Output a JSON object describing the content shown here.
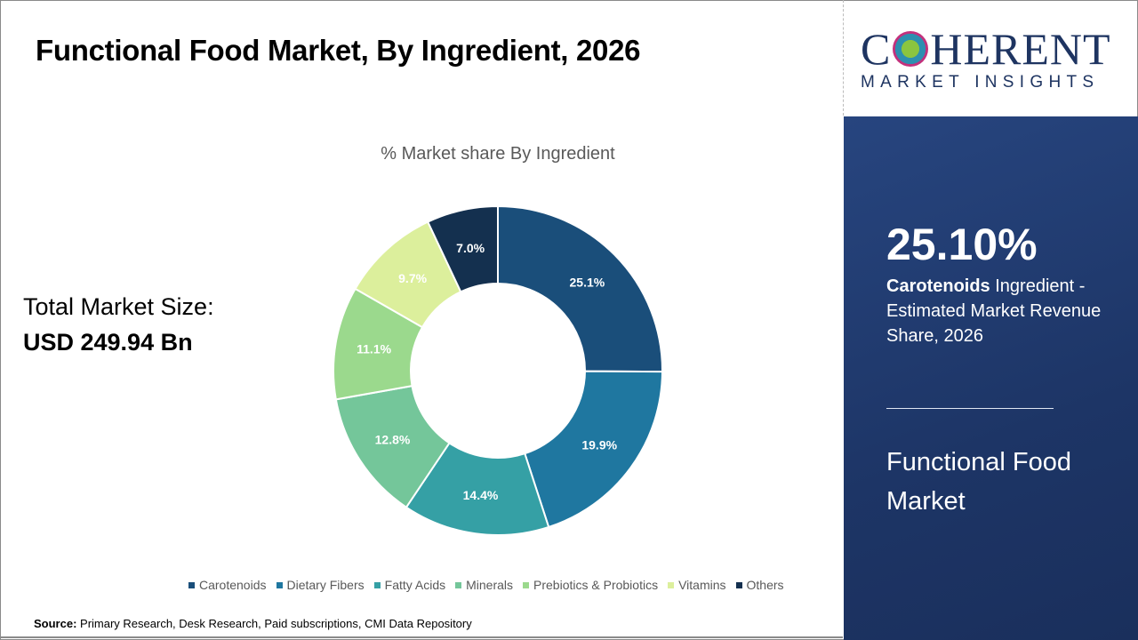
{
  "header": {
    "title": "Functional Food Market, By Ingredient, 2026"
  },
  "total": {
    "label": "Total Market Size:",
    "value": "USD 249.94 Bn"
  },
  "chart_data": {
    "type": "pie",
    "donut": true,
    "title": "% Market share By Ingredient",
    "categories": [
      "Carotenoids",
      "Dietary Fibers",
      "Fatty Acids",
      "Minerals",
      "Prebiotics & Probiotics",
      "Vitamins",
      "Others"
    ],
    "values": [
      25.1,
      19.9,
      14.4,
      12.8,
      11.1,
      9.7,
      7.0
    ],
    "data_labels": [
      "25.1%",
      "19.9%",
      "14.4%",
      "12.8%",
      "11.1%",
      "9.7%",
      "7.0%"
    ],
    "colors": [
      "#1a4e7a",
      "#1f77a0",
      "#35a0a5",
      "#74c69a",
      "#9bd98d",
      "#dcef9c",
      "#14304f"
    ],
    "legend_position": "bottom"
  },
  "source": {
    "label": "Source:",
    "text": "Primary Research, Desk Research, Paid subscriptions, CMI Data Repository"
  },
  "logo": {
    "top": "COHERENT",
    "bottom": "MARKET INSIGHTS"
  },
  "panel": {
    "percent": "25.10%",
    "highlight": "Carotenoids",
    "desc": " Ingredient - Estimated Market Revenue Share, 2026",
    "market": "Functional Food Market"
  }
}
